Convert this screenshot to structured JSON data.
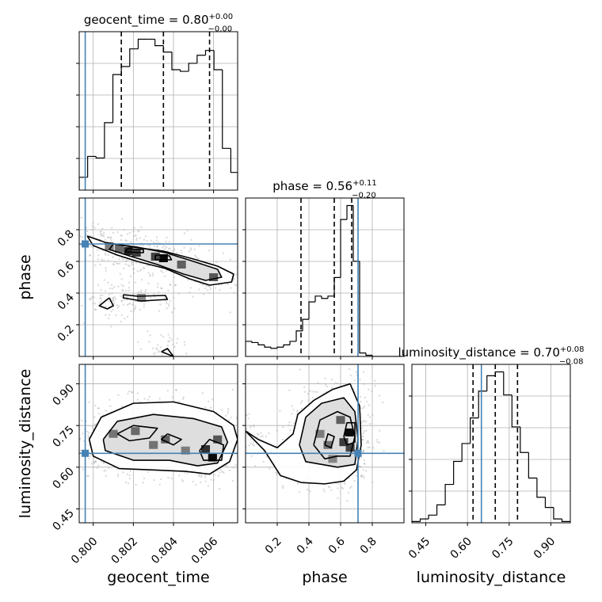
{
  "chart_data": {
    "type": "corner",
    "parameters": [
      "geocent_time",
      "phase",
      "luminosity_distance"
    ],
    "truth_color": "#4682b4",
    "truths": {
      "geocent_time": 0.7996,
      "phase": 0.71,
      "luminosity_distance": 0.65
    },
    "panels": [
      {
        "id": "hist-geocent_time",
        "type": "histogram",
        "parameter": "geocent_time",
        "title": {
          "main": "geocent_time = 0.80",
          "sup": "+0.00",
          "sub": "−0.00"
        },
        "xlim": [
          0.7993,
          0.8072
        ],
        "bin_edges": [
          0.7993,
          0.79972,
          0.80014,
          0.80056,
          0.80098,
          0.8014,
          0.80182,
          0.80224,
          0.80266,
          0.80308,
          0.8035,
          0.80392,
          0.80434,
          0.80476,
          0.80518,
          0.8056,
          0.80602,
          0.80644,
          0.80686,
          0.8072
        ],
        "counts": [
          8,
          21,
          20,
          42,
          72,
          77,
          88,
          94,
          94,
          90,
          86,
          75,
          74,
          79,
          84,
          87,
          75,
          26,
          11
        ],
        "quantiles": [
          0.8014,
          0.8035,
          0.8058
        ]
      },
      {
        "id": "hist-phase",
        "type": "histogram",
        "parameter": "phase",
        "title": {
          "main": "phase = 0.56",
          "sup": "+0.11",
          "sub": "−0.20"
        },
        "xlim": [
          0.0,
          1.0
        ],
        "bin_edges": [
          0,
          0.04,
          0.08,
          0.12,
          0.16,
          0.2,
          0.24,
          0.28,
          0.32,
          0.36,
          0.4,
          0.44,
          0.48,
          0.52,
          0.56,
          0.6,
          0.64,
          0.68,
          0.72,
          0.76,
          0.8,
          1.0
        ],
        "counts": [
          13,
          12,
          10,
          8,
          7,
          8,
          10,
          13,
          22,
          32,
          47,
          52,
          50,
          52,
          68,
          118,
          130,
          82,
          3,
          1,
          0
        ],
        "quantiles": [
          0.35,
          0.56,
          0.67
        ]
      },
      {
        "id": "hist-luminosity_distance",
        "type": "histogram",
        "parameter": "luminosity_distance",
        "title": {
          "main": "luminosity_distance = 0.70",
          "sup": "+0.08",
          "sub": "−0.08"
        },
        "xlim": [
          0.4,
          0.97
        ],
        "bin_edges": [
          0.4,
          0.43,
          0.46,
          0.49,
          0.52,
          0.55,
          0.58,
          0.61,
          0.64,
          0.67,
          0.7,
          0.73,
          0.76,
          0.79,
          0.82,
          0.85,
          0.88,
          0.91,
          0.94,
          0.97
        ],
        "counts": [
          1,
          3,
          6,
          14,
          30,
          48,
          62,
          82,
          103,
          115,
          118,
          100,
          75,
          55,
          35,
          20,
          12,
          3,
          1
        ],
        "quantiles": [
          0.62,
          0.7,
          0.78
        ]
      },
      {
        "id": "joint-phase-geocent_time",
        "type": "joint",
        "x": "geocent_time",
        "y": "phase",
        "xlim": [
          0.7993,
          0.8072
        ],
        "ylim": [
          0.0,
          1.0
        ],
        "truth": [
          0.7996,
          0.71
        ],
        "density_cells": [
          {
            "x": 0.80175,
            "y": 0.665,
            "v": 0.85
          },
          {
            "x": 0.80215,
            "y": 0.655,
            "v": 0.75
          },
          {
            "x": 0.8035,
            "y": 0.62,
            "v": 1.0
          },
          {
            "x": 0.8031,
            "y": 0.63,
            "v": 0.7
          },
          {
            "x": 0.8044,
            "y": 0.58,
            "v": 0.55
          },
          {
            "x": 0.806,
            "y": 0.5,
            "v": 0.6
          },
          {
            "x": 0.8013,
            "y": 0.68,
            "v": 0.5
          },
          {
            "x": 0.8008,
            "y": 0.695,
            "v": 0.4
          },
          {
            "x": 0.8024,
            "y": 0.37,
            "v": 0.35
          }
        ],
        "contours": [
          [
            [
              0.7997,
              0.76
            ],
            [
              0.8006,
              0.72
            ],
            [
              0.802,
              0.69
            ],
            [
              0.8035,
              0.665
            ],
            [
              0.805,
              0.615
            ],
            [
              0.8062,
              0.57
            ],
            [
              0.807,
              0.52
            ],
            [
              0.8069,
              0.47
            ],
            [
              0.8058,
              0.45
            ],
            [
              0.8048,
              0.49
            ],
            [
              0.8036,
              0.555
            ],
            [
              0.8022,
              0.6
            ],
            [
              0.8012,
              0.64
            ],
            [
              0.8,
              0.7
            ],
            [
              0.7997,
              0.76
            ]
          ],
          [
            [
              0.801,
              0.71
            ],
            [
              0.8022,
              0.69
            ],
            [
              0.8036,
              0.655
            ],
            [
              0.805,
              0.6
            ],
            [
              0.8062,
              0.55
            ],
            [
              0.8064,
              0.5
            ],
            [
              0.8056,
              0.48
            ],
            [
              0.8045,
              0.52
            ],
            [
              0.8032,
              0.58
            ],
            [
              0.8018,
              0.635
            ],
            [
              0.8008,
              0.675
            ],
            [
              0.801,
              0.71
            ]
          ],
          [
            [
              0.8017,
              0.68
            ],
            [
              0.8025,
              0.675
            ],
            [
              0.8025,
              0.655
            ],
            [
              0.8016,
              0.66
            ],
            [
              0.8017,
              0.68
            ]
          ],
          [
            [
              0.8031,
              0.64
            ],
            [
              0.8038,
              0.635
            ],
            [
              0.8039,
              0.61
            ],
            [
              0.8031,
              0.61
            ],
            [
              0.8031,
              0.64
            ]
          ],
          [
            [
              0.8015,
              0.39
            ],
            [
              0.8022,
              0.38
            ],
            [
              0.8036,
              0.385
            ],
            [
              0.8037,
              0.36
            ],
            [
              0.8024,
              0.35
            ],
            [
              0.8015,
              0.37
            ],
            [
              0.8015,
              0.39
            ]
          ],
          [
            [
              0.8008,
              0.37
            ],
            [
              0.801,
              0.32
            ],
            [
              0.8007,
              0.3
            ],
            [
              0.8003,
              0.32
            ],
            [
              0.8008,
              0.37
            ]
          ],
          [
            [
              0.8034,
              0.03
            ],
            [
              0.8037,
              0.05
            ],
            [
              0.804,
              0.0
            ],
            [
              0.8034,
              0.03
            ]
          ]
        ]
      },
      {
        "id": "joint-luminosity_distance-geocent_time",
        "type": "joint",
        "x": "geocent_time",
        "y": "luminosity_distance",
        "xlim": [
          0.7993,
          0.8072
        ],
        "ylim": [
          0.4,
          0.97
        ],
        "truth": [
          0.7996,
          0.65
        ],
        "density_cells": [
          {
            "x": 0.80595,
            "y": 0.635,
            "v": 1.0
          },
          {
            "x": 0.8056,
            "y": 0.665,
            "v": 0.8
          },
          {
            "x": 0.8062,
            "y": 0.7,
            "v": 0.6
          },
          {
            "x": 0.8036,
            "y": 0.7,
            "v": 0.55
          },
          {
            "x": 0.8021,
            "y": 0.73,
            "v": 0.5
          },
          {
            "x": 0.801,
            "y": 0.72,
            "v": 0.45
          },
          {
            "x": 0.803,
            "y": 0.68,
            "v": 0.45
          },
          {
            "x": 0.8046,
            "y": 0.66,
            "v": 0.4
          }
        ],
        "contours": [
          [
            [
              0.7998,
              0.7
            ],
            [
              0.8004,
              0.78
            ],
            [
              0.802,
              0.83
            ],
            [
              0.804,
              0.835
            ],
            [
              0.806,
              0.8
            ],
            [
              0.807,
              0.75
            ],
            [
              0.8072,
              0.7
            ],
            [
              0.8068,
              0.62
            ],
            [
              0.8058,
              0.575
            ],
            [
              0.8046,
              0.585
            ],
            [
              0.803,
              0.59
            ],
            [
              0.8013,
              0.595
            ],
            [
              0.8,
              0.64
            ],
            [
              0.7998,
              0.7
            ]
          ],
          [
            [
              0.8005,
              0.7
            ],
            [
              0.8012,
              0.765
            ],
            [
              0.803,
              0.79
            ],
            [
              0.805,
              0.775
            ],
            [
              0.8064,
              0.745
            ],
            [
              0.8067,
              0.69
            ],
            [
              0.8062,
              0.615
            ],
            [
              0.8052,
              0.605
            ],
            [
              0.8038,
              0.625
            ],
            [
              0.802,
              0.625
            ],
            [
              0.8006,
              0.66
            ],
            [
              0.8005,
              0.7
            ]
          ],
          [
            [
              0.8012,
              0.72
            ],
            [
              0.802,
              0.75
            ],
            [
              0.8032,
              0.74
            ],
            [
              0.8028,
              0.705
            ],
            [
              0.8018,
              0.695
            ],
            [
              0.8012,
              0.72
            ]
          ],
          [
            [
              0.8037,
              0.72
            ],
            [
              0.8044,
              0.7
            ],
            [
              0.804,
              0.68
            ],
            [
              0.8034,
              0.7
            ],
            [
              0.8037,
              0.72
            ]
          ],
          [
            [
              0.8053,
              0.66
            ],
            [
              0.8058,
              0.7
            ],
            [
              0.8065,
              0.68
            ],
            [
              0.8064,
              0.625
            ],
            [
              0.8055,
              0.625
            ],
            [
              0.8053,
              0.66
            ]
          ]
        ]
      },
      {
        "id": "joint-luminosity_distance-phase",
        "type": "joint",
        "x": "phase",
        "y": "luminosity_distance",
        "xlim": [
          0.0,
          1.0
        ],
        "ylim": [
          0.4,
          0.97
        ],
        "truth": [
          0.71,
          0.65
        ],
        "density_cells": [
          {
            "x": 0.655,
            "y": 0.725,
            "v": 1.0
          },
          {
            "x": 0.62,
            "y": 0.69,
            "v": 0.75
          },
          {
            "x": 0.66,
            "y": 0.67,
            "v": 0.7
          },
          {
            "x": 0.6,
            "y": 0.77,
            "v": 0.55
          },
          {
            "x": 0.52,
            "y": 0.68,
            "v": 0.45
          },
          {
            "x": 0.47,
            "y": 0.72,
            "v": 0.4
          },
          {
            "x": 0.55,
            "y": 0.63,
            "v": 0.35
          }
        ],
        "contours": [
          [
            [
              0.0,
              0.73
            ],
            [
              0.12,
              0.66
            ],
            [
              0.22,
              0.57
            ],
            [
              0.35,
              0.545
            ],
            [
              0.5,
              0.54
            ],
            [
              0.62,
              0.55
            ],
            [
              0.7,
              0.59
            ],
            [
              0.73,
              0.68
            ],
            [
              0.72,
              0.82
            ],
            [
              0.66,
              0.9
            ],
            [
              0.55,
              0.88
            ],
            [
              0.43,
              0.84
            ],
            [
              0.33,
              0.79
            ],
            [
              0.3,
              0.72
            ],
            [
              0.2,
              0.67
            ],
            [
              0.08,
              0.7
            ],
            [
              0.0,
              0.73
            ]
          ],
          [
            [
              0.34,
              0.68
            ],
            [
              0.38,
              0.78
            ],
            [
              0.48,
              0.83
            ],
            [
              0.62,
              0.85
            ],
            [
              0.69,
              0.8
            ],
            [
              0.71,
              0.7
            ],
            [
              0.69,
              0.61
            ],
            [
              0.58,
              0.6
            ],
            [
              0.48,
              0.61
            ],
            [
              0.38,
              0.62
            ],
            [
              0.34,
              0.68
            ]
          ],
          [
            [
              0.43,
              0.68
            ],
            [
              0.47,
              0.77
            ],
            [
              0.58,
              0.8
            ],
            [
              0.66,
              0.78
            ],
            [
              0.69,
              0.71
            ],
            [
              0.66,
              0.64
            ],
            [
              0.58,
              0.64
            ],
            [
              0.5,
              0.63
            ],
            [
              0.43,
              0.68
            ]
          ],
          [
            [
              0.5,
              0.68
            ],
            [
              0.52,
              0.72
            ],
            [
              0.56,
              0.71
            ],
            [
              0.54,
              0.67
            ],
            [
              0.5,
              0.68
            ]
          ],
          [
            [
              0.62,
              0.71
            ],
            [
              0.64,
              0.76
            ],
            [
              0.69,
              0.76
            ],
            [
              0.69,
              0.69
            ],
            [
              0.64,
              0.68
            ],
            [
              0.62,
              0.71
            ]
          ]
        ]
      }
    ],
    "axes": {
      "geocent_time": {
        "ticks": [
          0.8,
          0.802,
          0.804,
          0.806
        ],
        "tick_labels": [
          "0.800",
          "0.802",
          "0.804",
          "0.806"
        ],
        "label": "geocent_time"
      },
      "phase": {
        "ticks": [
          0.2,
          0.4,
          0.6,
          0.8
        ],
        "tick_labels": [
          "0.2",
          "0.4",
          "0.6",
          "0.8"
        ],
        "label": "phase"
      },
      "luminosity_distance": {
        "ticks": [
          0.45,
          0.6,
          0.75,
          0.9
        ],
        "tick_labels": [
          "0.45",
          "0.60",
          "0.75",
          "0.90"
        ],
        "label": "luminosity_distance"
      }
    }
  }
}
